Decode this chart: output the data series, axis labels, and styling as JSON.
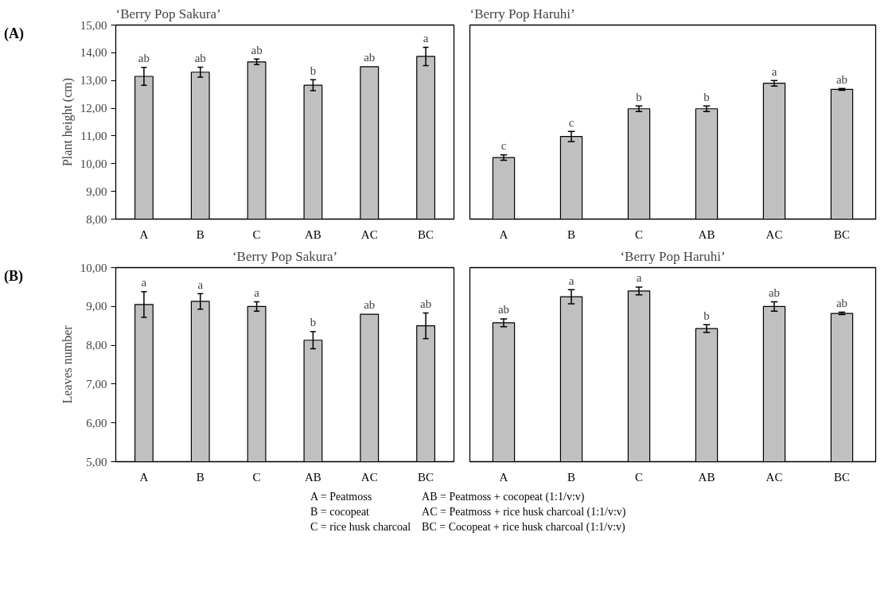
{
  "chart_data": [
    {
      "type": "bar",
      "title": "‘Berry Pop Sakura’",
      "ylabel": "Plant height (cm)",
      "annotations": [
        "(A)"
      ],
      "categories": [
        "A",
        "B",
        "C",
        "AB",
        "AC",
        "BC"
      ],
      "color": "#c0c0c0",
      "values": [
        13.15,
        13.3,
        13.67,
        12.83,
        13.5,
        13.87
      ],
      "errors": [
        0.32,
        0.18,
        0.1,
        0.2,
        null,
        0.33
      ],
      "value_labels": [
        "ab",
        "ab",
        "ab",
        "b",
        "ab",
        "a"
      ],
      "ylim": [
        8,
        15
      ],
      "yticks": [
        {
          "value": 8,
          "label": "8,00"
        },
        {
          "value": 9,
          "label": "9,00"
        },
        {
          "value": 10,
          "label": "10,00"
        },
        {
          "value": 11,
          "label": "11,00"
        },
        {
          "value": 12,
          "label": "12,00"
        },
        {
          "value": 13,
          "label": "13,00"
        },
        {
          "value": 14,
          "label": "14,00"
        },
        {
          "value": 15,
          "label": "15,00"
        }
      ]
    },
    {
      "type": "bar",
      "title": "‘Berry Pop Haruhi’",
      "categories": [
        "A",
        "B",
        "C",
        "AB",
        "AC",
        "BC"
      ],
      "color": "#c0c0c0",
      "values": [
        10.22,
        10.98,
        11.98,
        11.98,
        12.9,
        12.68
      ],
      "errors": [
        0.1,
        0.18,
        0.1,
        0.1,
        0.1,
        0.03
      ],
      "value_labels": [
        "c",
        "c",
        "b",
        "b",
        "a",
        "ab"
      ],
      "ylim": [
        8,
        15
      ],
      "tick_labels": "x"
    },
    {
      "type": "bar",
      "title": "‘Berry Pop Sakura’",
      "ylabel": "Leaves number",
      "annotations": [
        "(B)"
      ],
      "categories": [
        "A",
        "B",
        "C",
        "AB",
        "AC",
        "BC"
      ],
      "color": "#c0c0c0",
      "values": [
        9.05,
        9.13,
        9.0,
        8.13,
        8.8,
        8.5
      ],
      "errors": [
        0.33,
        0.2,
        0.12,
        0.22,
        null,
        0.33
      ],
      "value_labels": [
        "a",
        "a",
        "a",
        "b",
        "ab",
        "ab"
      ],
      "ylim": [
        5,
        10
      ],
      "yticks": [
        {
          "value": 5,
          "label": "5,00"
        },
        {
          "value": 6,
          "label": "6,00"
        },
        {
          "value": 7,
          "label": "7,00"
        },
        {
          "value": 8,
          "label": "8,00"
        },
        {
          "value": 9,
          "label": "9,00"
        },
        {
          "value": 10,
          "label": "10,00"
        }
      ]
    },
    {
      "type": "bar",
      "title": "‘Berry Pop Haruhi’",
      "categories": [
        "A",
        "B",
        "C",
        "AB",
        "AC",
        "BC"
      ],
      "color": "#c0c0c0",
      "values": [
        8.58,
        9.25,
        9.4,
        8.43,
        9.0,
        8.82
      ],
      "errors": [
        0.1,
        0.18,
        0.1,
        0.1,
        0.12,
        0.03
      ],
      "value_labels": [
        "ab",
        "a",
        "a",
        "b",
        "ab",
        "ab"
      ],
      "ylim": [
        5,
        10
      ],
      "tick_labels": "x",
      "annotations": [
        "A = Peatmoss",
        "AB = Peatmoss + cocopeat (1:1/v:v)",
        "B = cocopeat",
        "AC = Peatmoss + rice husk charcoal (1:1/v:v)",
        "C = rice husk charcoal",
        "BC = Cocopeat + rice husk charcoal (1:1/v:v)"
      ]
    }
  ]
}
